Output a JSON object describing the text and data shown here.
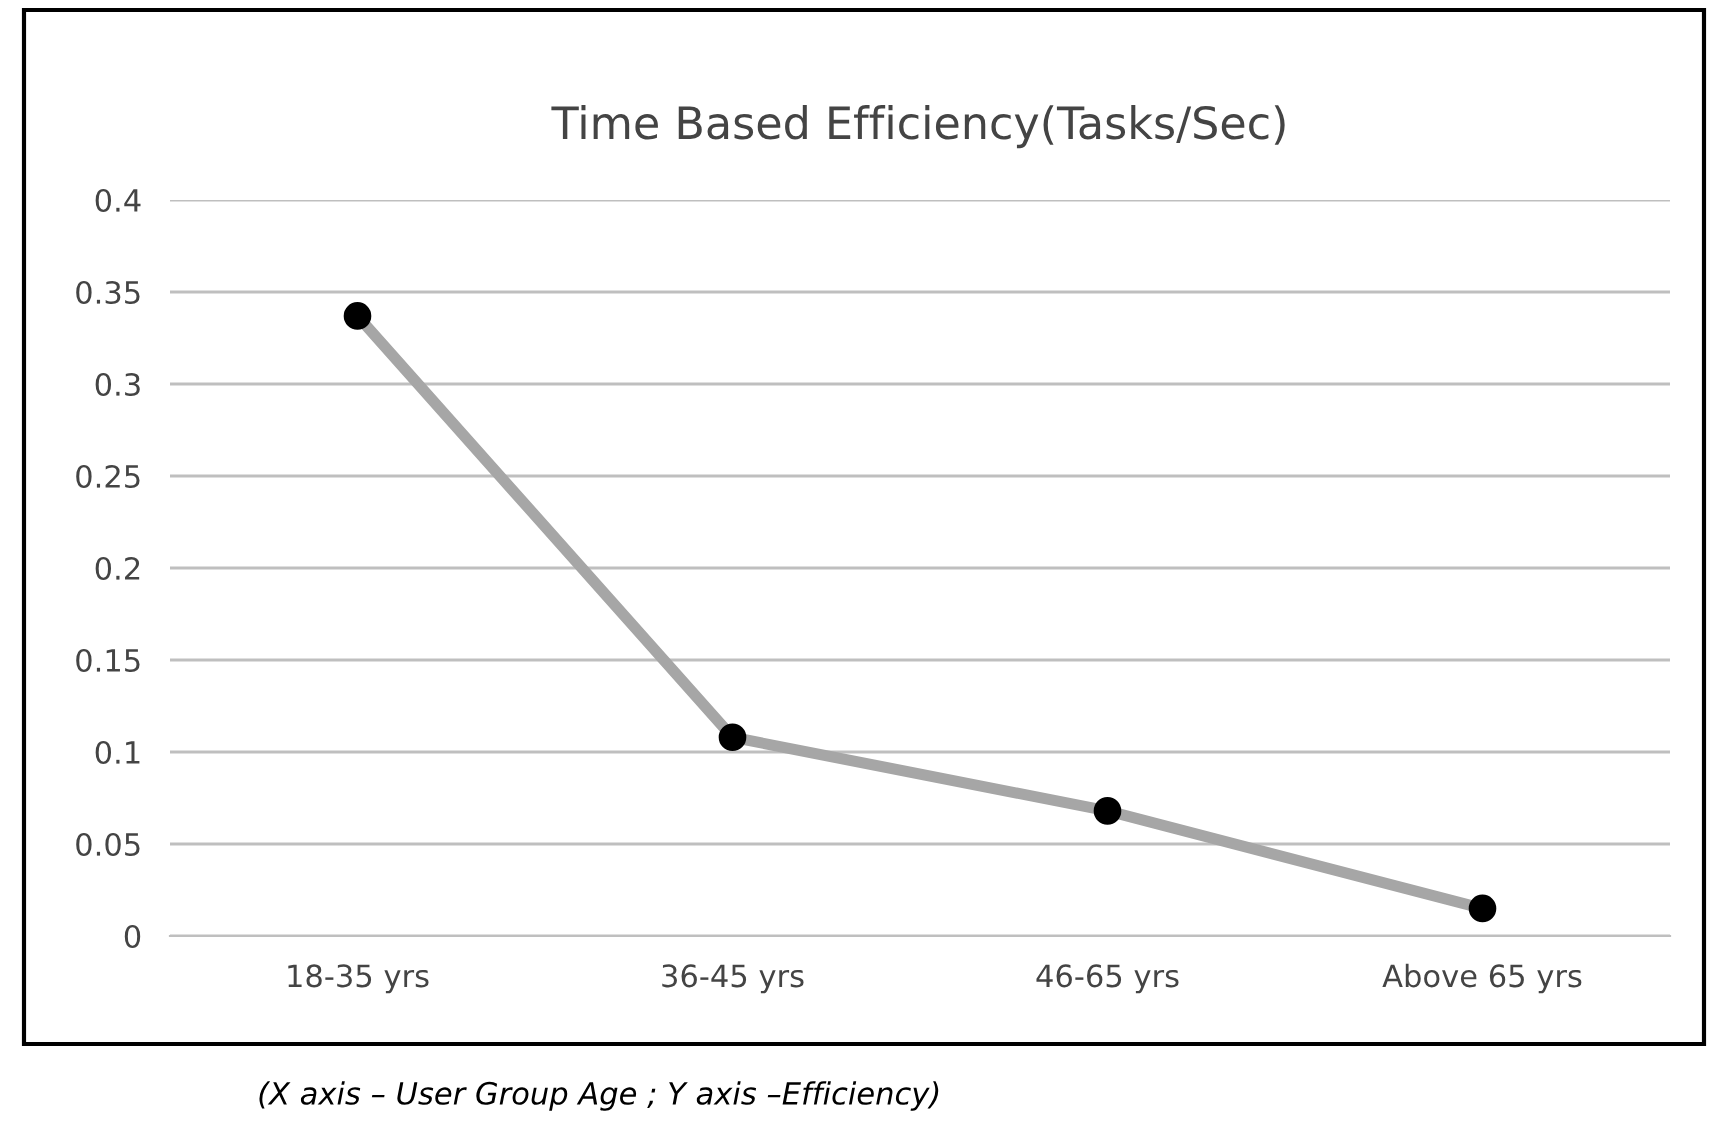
{
  "chart_data": {
    "type": "line",
    "title": "Time Based Efficiency(Tasks/Sec)",
    "categories": [
      "18-35 yrs",
      "36-45 yrs",
      "46-65 yrs",
      "Above 65 yrs"
    ],
    "series": [
      {
        "color": "#a6a6a6",
        "values": [
          0.337,
          0.108,
          0.068,
          0.015
        ]
      }
    ],
    "ylim": [
      0,
      0.4
    ],
    "yticks": [
      0,
      0.05,
      0.1,
      0.15,
      0.2,
      0.25,
      0.3,
      0.35,
      0.4
    ],
    "grid": "y",
    "marker": "circle",
    "line_style": "solid",
    "annotations": [
      "(X axis – User Group Age ; Y axis –Efficiency)"
    ]
  }
}
